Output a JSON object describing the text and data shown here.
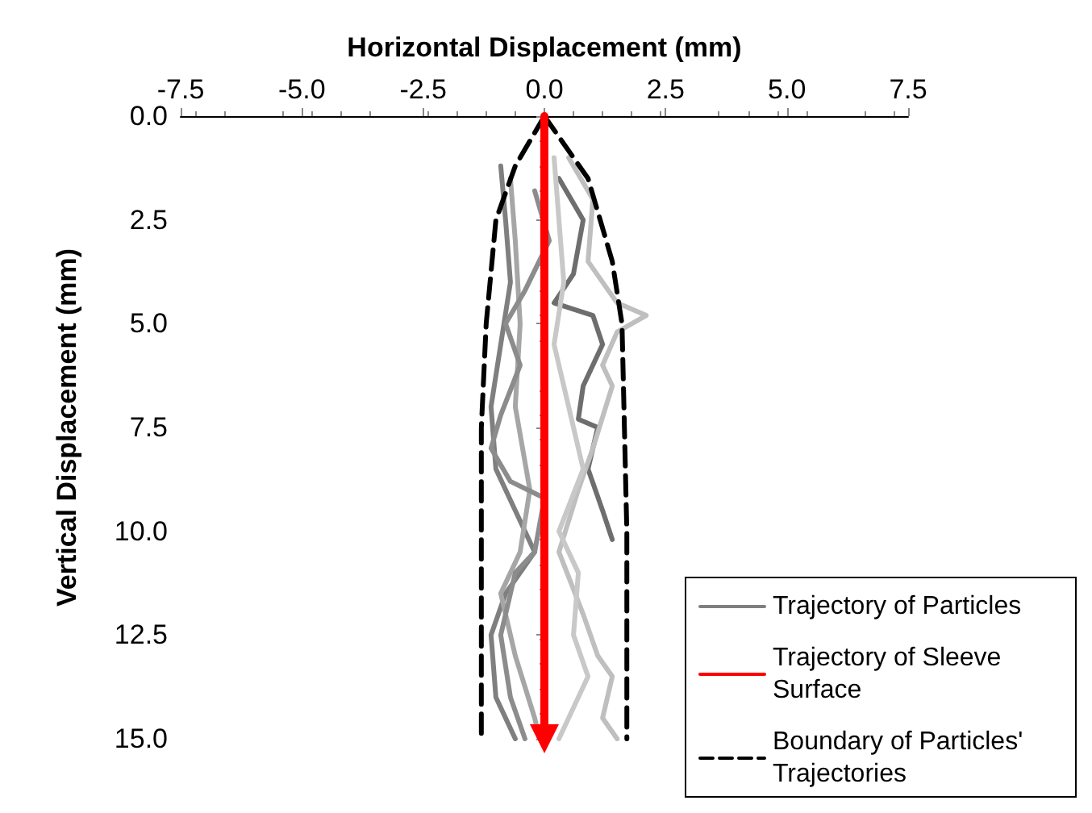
{
  "chart_data": {
    "type": "line",
    "xlabel": "Horizontal Displacement (mm)",
    "ylabel": "Vertical Displacement (mm)",
    "xlim": [
      -7.5,
      7.5
    ],
    "ylim": [
      15,
      0
    ],
    "xticks": [
      {
        "value": -7.5,
        "label": "-7.5"
      },
      {
        "value": -5,
        "label": "-5.0"
      },
      {
        "value": -2.5,
        "label": "-2.5"
      },
      {
        "value": 0,
        "label": "0.0"
      },
      {
        "value": 2.5,
        "label": "2.5"
      },
      {
        "value": 5,
        "label": "5.0"
      },
      {
        "value": 7.5,
        "label": "7.5"
      }
    ],
    "yticks": [
      {
        "value": 0,
        "label": "0.0"
      },
      {
        "value": 2.5,
        "label": "2.5"
      },
      {
        "value": 5,
        "label": "5.0"
      },
      {
        "value": 7.5,
        "label": "7.5"
      },
      {
        "value": 10,
        "label": "10.0"
      },
      {
        "value": 12.5,
        "label": "12.5"
      },
      {
        "value": 15,
        "label": "15.0"
      }
    ],
    "grid": false,
    "legend": "bottom right",
    "marker": "none",
    "line_style": "solid",
    "series": [
      {
        "name": "Trajectory of Particles",
        "color": "#7f7f7f",
        "x": [
          -0.9,
          -0.8,
          -0.7,
          -0.9,
          -1.1,
          -1.0,
          -0.6,
          -0.2,
          -0.8,
          -1.1,
          -1.0,
          -0.6
        ],
        "values": [
          1.2,
          2.5,
          4,
          5.5,
          7,
          8.5,
          9.5,
          10.5,
          11.5,
          12.5,
          14,
          15
        ]
      },
      {
        "color": "#6e6e6e",
        "x": [
          0.3,
          0.8,
          0.6,
          0.2,
          1.0,
          1.2,
          0.8,
          0.7,
          1.1,
          0.9,
          1.2,
          1.4
        ],
        "values": [
          1.5,
          2.5,
          3.8,
          4.5,
          4.8,
          5.5,
          6.5,
          7.3,
          7.5,
          8.5,
          9.5,
          10.2
        ]
      },
      {
        "color": "#bfbfbf",
        "x": [
          0.5,
          1.0,
          0.9,
          1.5,
          2.1,
          1.5,
          1.2,
          1.4,
          1.0,
          0.7,
          0.3,
          0.8,
          1.1,
          1.4,
          1.2,
          1.5
        ],
        "values": [
          1.0,
          2.0,
          3.5,
          4.5,
          4.8,
          5.2,
          6.0,
          6.5,
          8.0,
          9.0,
          10.5,
          12,
          13,
          13.5,
          14.5,
          15
        ]
      },
      {
        "color": "#a6a6a6",
        "x": [
          -0.7,
          -0.6,
          -0.5,
          -0.6,
          -0.3,
          -0.5,
          -0.9,
          -0.6,
          -0.2,
          -0.1
        ],
        "values": [
          1.5,
          3,
          5,
          7,
          9,
          10.5,
          11.5,
          13,
          14.5,
          15
        ]
      },
      {
        "color": "#8c8c8c",
        "x": [
          -0.2,
          0.1,
          -0.4,
          -0.8,
          -0.5,
          -0.9,
          -1.1,
          -0.7,
          0.0,
          -0.2,
          -0.6,
          -0.9,
          -0.7,
          -0.4
        ],
        "values": [
          1.8,
          3,
          4.2,
          5.0,
          6.0,
          7.2,
          8,
          8.8,
          9.2,
          10.5,
          11.0,
          12.5,
          14.0,
          15
        ]
      },
      {
        "color": "#c8c8c8",
        "x": [
          0.2,
          0.3,
          0.4,
          0.2,
          0.5,
          0.8,
          0.3,
          0.7,
          0.6,
          0.9,
          0.5,
          0.3
        ],
        "values": [
          1.0,
          2.5,
          4.0,
          5.5,
          7.0,
          8.5,
          10.0,
          11,
          12.5,
          13.5,
          14.5,
          15
        ]
      },
      {
        "name": "Trajectory of Sleeve Surface",
        "color": "#ff0000",
        "marker": "triangle",
        "x": [
          0,
          0
        ],
        "values": [
          0,
          15
        ]
      },
      {
        "name": "Boundary of Particles' Trajectories",
        "color": "#000000",
        "line_style": "dashed",
        "x": [
          0,
          -0.6,
          -1.0,
          -1.2,
          -1.3,
          -1.3,
          -1.3
        ],
        "values": [
          0,
          1.2,
          2.5,
          5,
          7.5,
          10,
          15
        ]
      },
      {
        "color": "#000000",
        "line_style": "dashed",
        "x": [
          0,
          0.9,
          1.4,
          1.6,
          1.65,
          1.7,
          1.7
        ],
        "values": [
          0,
          1.5,
          3.5,
          5,
          7.5,
          10,
          15
        ]
      }
    ]
  }
}
